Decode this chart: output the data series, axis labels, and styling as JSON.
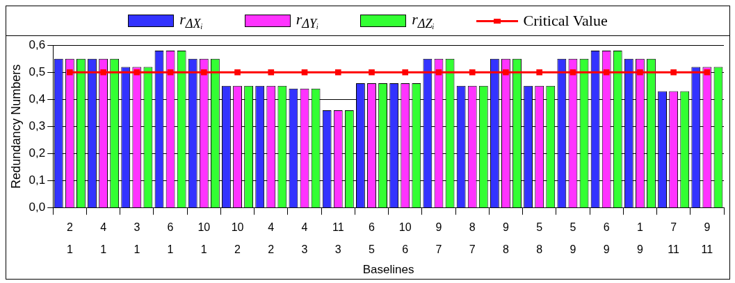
{
  "chart_data": {
    "type": "bar",
    "xlabel": "Baselines",
    "ylabel": "Redundancy Numbers",
    "categories": [
      "2\n1",
      "4\n1",
      "3\n1",
      "6\n1",
      "10\n1",
      "10\n2",
      "4\n2",
      "4\n3",
      "11\n3",
      "6\n5",
      "10\n6",
      "9\n7",
      "8\n7",
      "9\n8",
      "5\n8",
      "5\n9",
      "6\n9",
      "1\n9",
      "7\n11",
      "9\n11"
    ],
    "series": [
      {
        "name": "r$_{ΔXᵢ}$",
        "color": "#3333ff",
        "values": [
          0.55,
          0.55,
          0.52,
          0.58,
          0.55,
          0.45,
          0.45,
          0.44,
          0.36,
          0.46,
          0.46,
          0.55,
          0.45,
          0.55,
          0.45,
          0.55,
          0.58,
          0.55,
          0.43,
          0.52
        ]
      },
      {
        "name": "r$_{ΔYᵢ}$",
        "color": "#ff33ff",
        "values": [
          0.55,
          0.55,
          0.52,
          0.58,
          0.55,
          0.45,
          0.45,
          0.44,
          0.36,
          0.46,
          0.46,
          0.55,
          0.45,
          0.55,
          0.45,
          0.55,
          0.58,
          0.55,
          0.43,
          0.52
        ]
      },
      {
        "name": "r$_{ΔZᵢ}$",
        "color": "#33ff33",
        "values": [
          0.55,
          0.55,
          0.52,
          0.58,
          0.55,
          0.45,
          0.45,
          0.44,
          0.36,
          0.46,
          0.46,
          0.55,
          0.45,
          0.55,
          0.45,
          0.55,
          0.58,
          0.55,
          0.43,
          0.52
        ]
      },
      {
        "name": "Critical Value",
        "type": "line",
        "color": "#ff0000",
        "marker": "square",
        "values": [
          0.5,
          0.5,
          0.5,
          0.5,
          0.5,
          0.5,
          0.5,
          0.5,
          0.5,
          0.5,
          0.5,
          0.5,
          0.5,
          0.5,
          0.5,
          0.5,
          0.5,
          0.5,
          0.5,
          0.5
        ]
      }
    ],
    "ylim": [
      0,
      0.6
    ],
    "yticks": [
      {
        "value": 0,
        "label": "0,0"
      },
      {
        "value": 0.1,
        "label": "0,1"
      },
      {
        "value": 0.2,
        "label": "0,2"
      },
      {
        "value": 0.3,
        "label": "0,3"
      },
      {
        "value": 0.4,
        "label": "0,4"
      },
      {
        "value": 0.5,
        "label": "0,5"
      },
      {
        "value": 0.6,
        "label": "0,6"
      }
    ],
    "grid": "y",
    "legend": "top"
  }
}
